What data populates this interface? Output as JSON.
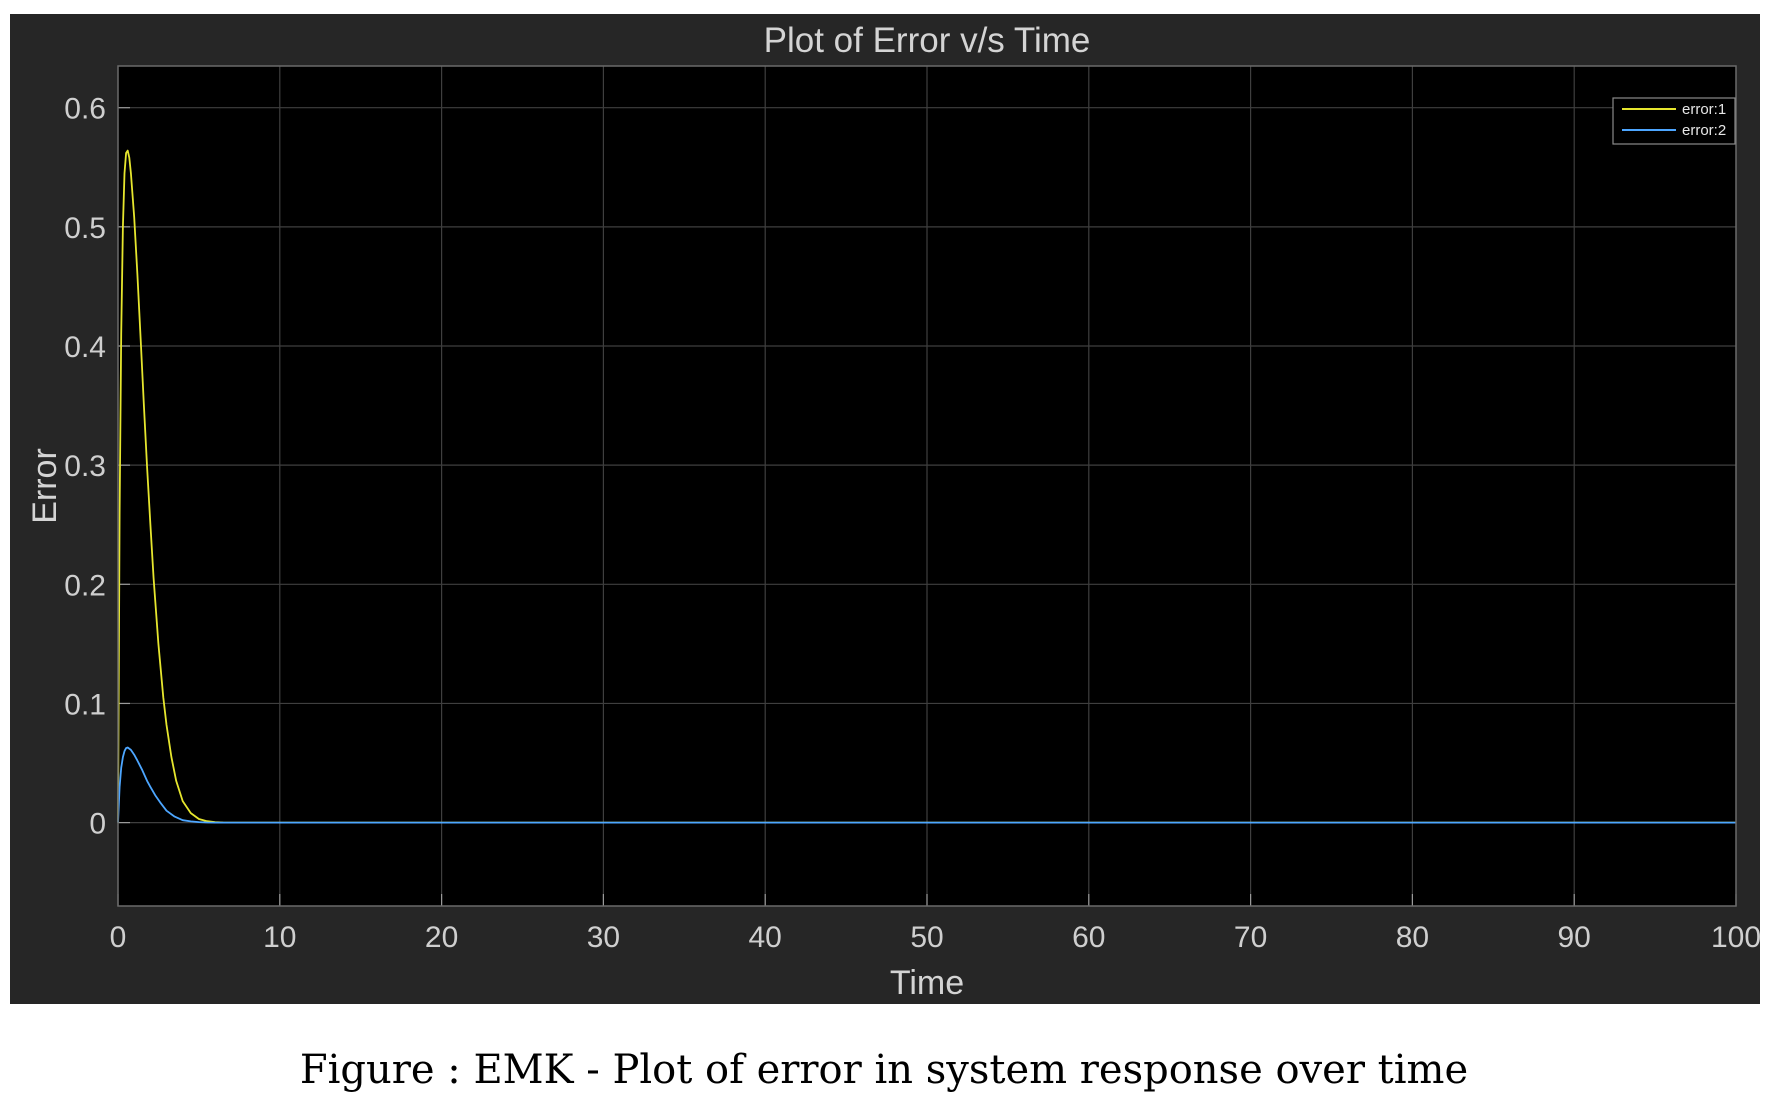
{
  "chart_data": {
    "type": "line",
    "title": "Plot of Error v/s Time",
    "xlabel": "Time",
    "ylabel": "Error",
    "xlim": [
      0,
      100
    ],
    "ylim": [
      -0.07,
      0.635
    ],
    "xticks": [
      0,
      10,
      20,
      30,
      40,
      50,
      60,
      70,
      80,
      90,
      100
    ],
    "yticks": [
      0,
      0.1,
      0.2,
      0.3,
      0.4,
      0.5,
      0.6
    ],
    "grid": true,
    "legend_position": "top-right",
    "background_color": "#000000",
    "figure_color": "#262626",
    "grid_color": "#3f3f3f",
    "series": [
      {
        "name": "error:1",
        "color": "#e6e62e",
        "x": [
          0,
          0.1,
          0.2,
          0.3,
          0.4,
          0.5,
          0.6,
          0.7,
          0.8,
          1.0,
          1.2,
          1.4,
          1.6,
          1.8,
          2.0,
          2.2,
          2.5,
          2.8,
          3.0,
          3.3,
          3.6,
          4.0,
          4.5,
          5.0,
          5.5,
          6.0,
          6.5,
          7.0,
          8.0,
          10.0,
          20.0,
          40.0,
          60.0,
          80.0,
          100.0
        ],
        "values": [
          0,
          0.26,
          0.41,
          0.5,
          0.545,
          0.562,
          0.564,
          0.558,
          0.545,
          0.508,
          0.46,
          0.405,
          0.35,
          0.298,
          0.25,
          0.205,
          0.15,
          0.105,
          0.082,
          0.055,
          0.035,
          0.018,
          0.008,
          0.003,
          0.0012,
          0.0004,
          0.0001,
          0,
          0,
          0,
          0,
          0,
          0,
          0,
          0
        ]
      },
      {
        "name": "error:2",
        "color": "#4da6ff",
        "x": [
          0,
          0.1,
          0.2,
          0.3,
          0.4,
          0.5,
          0.6,
          0.8,
          1.0,
          1.2,
          1.5,
          1.8,
          2.0,
          2.3,
          2.6,
          3.0,
          3.5,
          4.0,
          4.5,
          5.0,
          5.5,
          6.0,
          7.0,
          8.0,
          10.0,
          20.0,
          40.0,
          60.0,
          80.0,
          100.0
        ],
        "values": [
          0,
          0.03,
          0.046,
          0.055,
          0.06,
          0.0625,
          0.063,
          0.061,
          0.057,
          0.052,
          0.044,
          0.035,
          0.03,
          0.023,
          0.017,
          0.01,
          0.005,
          0.002,
          0.001,
          0.0004,
          0.0001,
          0,
          0,
          0,
          0,
          0,
          0,
          0,
          0,
          0
        ]
      }
    ]
  },
  "caption": "Figure  : EMK - Plot of error in system response over time"
}
